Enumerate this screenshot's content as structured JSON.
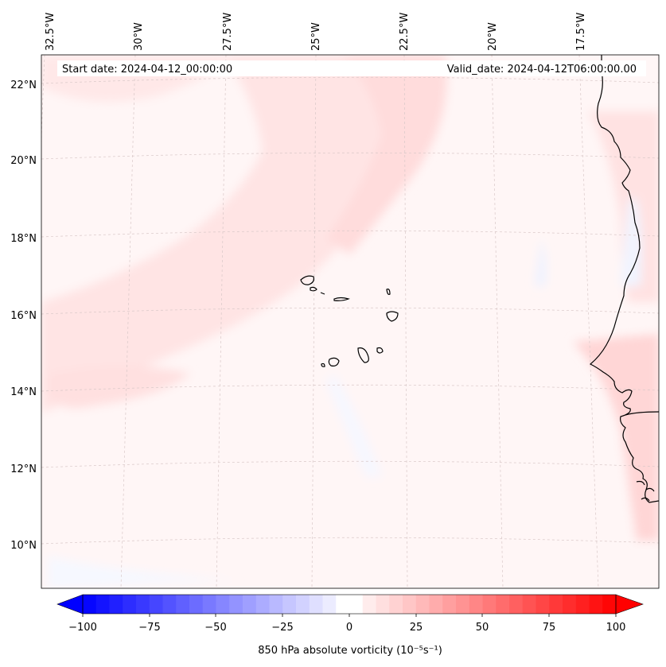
{
  "header": {
    "start_date": "Start date: 2024-04-12_00:00:00",
    "valid_date": "Valid_date: 2024-04-12T06:00:00.00"
  },
  "axes": {
    "lon_labels": [
      "32.5°W",
      "30°W",
      "27.5°W",
      "25°W",
      "22.5°W",
      "20°W",
      "17.5°W"
    ],
    "lat_labels": [
      "22°N",
      "20°N",
      "18°N",
      "16°N",
      "14°N",
      "12°N",
      "10°N"
    ]
  },
  "colorbar": {
    "label": "850 hPa absolute vorticity (10⁻⁵s⁻¹)",
    "ticks": [
      "−100",
      "−75",
      "−50",
      "−25",
      "0",
      "25",
      "50",
      "75",
      "100"
    ],
    "min": -100,
    "max": 100,
    "levels": 40,
    "neg_color": "#0000ff",
    "pos_color": "#ff0000",
    "mid_color": "#ffffff"
  },
  "map": {
    "background_tint": "#fff6f6"
  }
}
